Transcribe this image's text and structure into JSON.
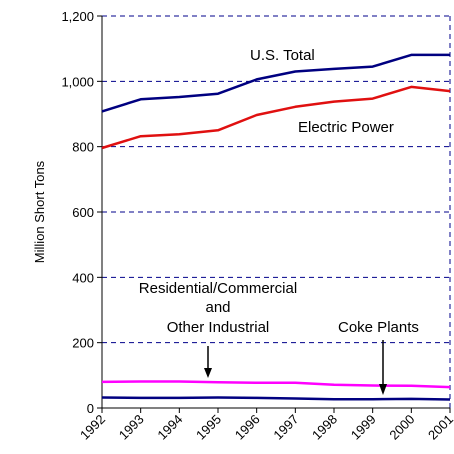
{
  "chart_data": {
    "type": "line",
    "title": "",
    "xlabel": "",
    "ylabel": "Million Short Tons",
    "x": [
      "1992",
      "1993",
      "1994",
      "1995",
      "1996",
      "1997",
      "1998",
      "1999",
      "2000",
      "2001"
    ],
    "ylim": [
      0,
      1200
    ],
    "yticks": [
      "0",
      "200",
      "400",
      "600",
      "800",
      "1,000",
      "1,200"
    ],
    "ytick_values": [
      0,
      200,
      400,
      600,
      800,
      1000,
      1200
    ],
    "grid": true,
    "series": [
      {
        "name": "U.S. Total",
        "color": "#000080",
        "values": [
          908,
          945,
          952,
          962,
          1006,
          1030,
          1038,
          1045,
          1081,
          1081
        ]
      },
      {
        "name": "Electric Power",
        "color": "#e01010",
        "values": [
          796,
          832,
          838,
          850,
          897,
          922,
          938,
          947,
          983,
          970
        ]
      },
      {
        "name": "Residential/Commercial and Other Industrial",
        "color": "#ff00ff",
        "values": [
          80,
          81,
          81,
          79,
          77,
          77,
          71,
          69,
          68,
          64
        ]
      },
      {
        "name": "Coke Plants",
        "color": "#000080",
        "values": [
          32,
          31,
          31,
          32,
          31,
          29,
          27,
          27,
          28,
          26
        ]
      }
    ],
    "annotations": {
      "us_total": "U.S. Total",
      "electric_power": "Electric Power",
      "res_line1": "Residential/Commercial",
      "res_line2": "and",
      "res_line3": "Other Industrial",
      "coke": "Coke Plants"
    }
  }
}
